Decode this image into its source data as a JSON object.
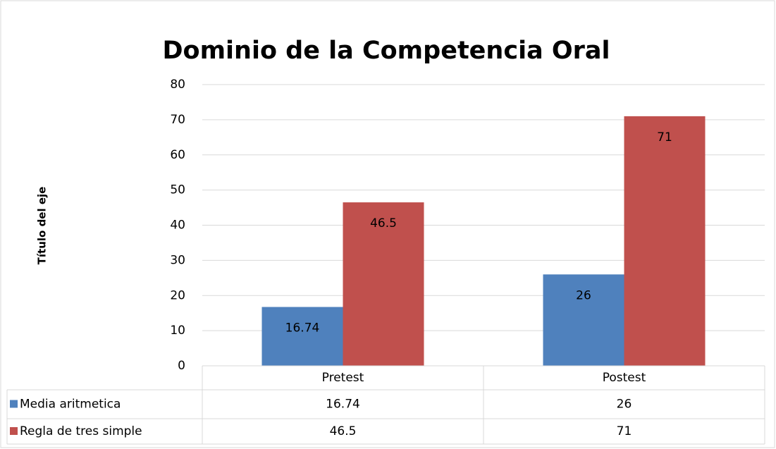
{
  "chart_data": {
    "type": "bar",
    "title": "Dominio de la Competencia Oral",
    "y_label": "Título del eje",
    "categories": [
      "Pretest",
      "Postest"
    ],
    "series": [
      {
        "name": "Media aritmetica",
        "color": "#4f81bd",
        "values": [
          16.74,
          26
        ]
      },
      {
        "name": "Regla de tres simple",
        "color": "#c0504d",
        "values": [
          46.5,
          71
        ]
      }
    ],
    "ylim": [
      0,
      80
    ],
    "yticks": [
      0,
      10,
      20,
      30,
      40,
      50,
      60,
      70,
      80
    ],
    "grid": true,
    "data_table": true
  }
}
